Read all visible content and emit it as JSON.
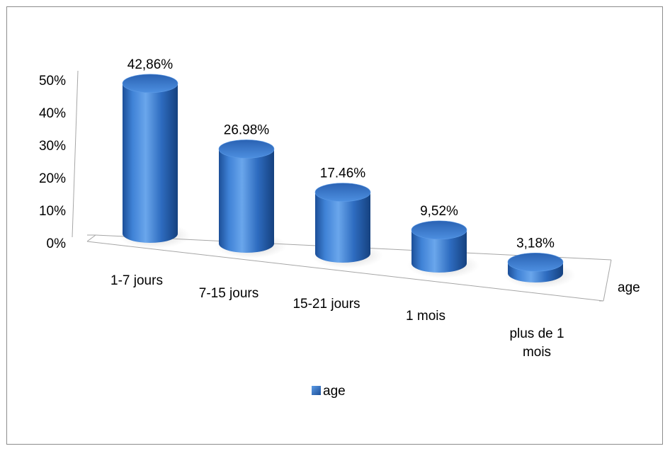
{
  "chart_data": {
    "type": "bar",
    "style": "3d-cylinder",
    "categories": [
      "1-7 jours",
      "7-15 jours",
      "15-21 jours",
      "1 mois",
      "plus de 1 mois"
    ],
    "category_lines": [
      [
        "1-7 jours"
      ],
      [
        "7-15 jours"
      ],
      [
        "15-21 jours"
      ],
      [
        "1 mois"
      ],
      [
        "plus de 1",
        "mois"
      ]
    ],
    "series": [
      {
        "name": "age",
        "values": [
          42.86,
          26.98,
          17.46,
          9.52,
          3.18
        ],
        "data_labels": [
          "42,86%",
          "26.98%",
          "17.46%",
          "9,52%",
          "3,18%"
        ],
        "color": "#2f6fc4"
      }
    ],
    "depth_axis_label": "age",
    "ylim": [
      0,
      50
    ],
    "yticks": [
      "0%",
      "10%",
      "20%",
      "30%",
      "40%",
      "50%"
    ],
    "legend": {
      "position": "bottom",
      "entries": [
        "age"
      ]
    },
    "grid": false
  }
}
